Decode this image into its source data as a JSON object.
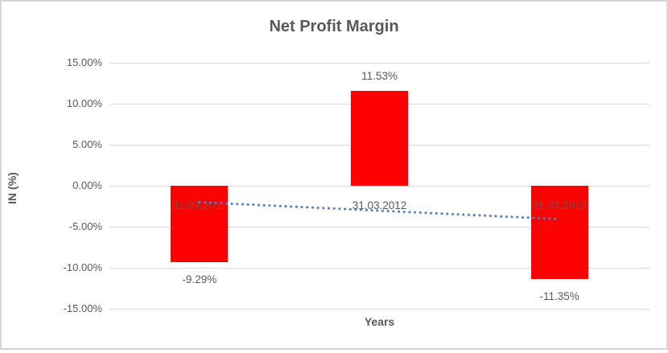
{
  "chart_data": {
    "type": "bar",
    "title": "Net Profit Margin",
    "xlabel": "Years",
    "ylabel": "IN (%)",
    "categories": [
      "31.03.2011",
      "31.03.2012",
      "31.03.2013"
    ],
    "values": [
      -9.29,
      11.53,
      -11.35
    ],
    "data_labels": [
      "-9.29%",
      "11.53%",
      "-11.35%"
    ],
    "ylim": [
      -15,
      15
    ],
    "ytick_step": 5,
    "ytick_labels": [
      "15.00%",
      "10.00%",
      "5.00%",
      "0.00%",
      "-5.00%",
      "-10.00%",
      "-15.00%"
    ],
    "grid": true,
    "legend": "none",
    "bar_color": "#ff0000",
    "gridline_color": "#d9d9d9",
    "text_color": "#595959",
    "trendline": {
      "type": "linear",
      "style": "dotted",
      "color": "#4f81bd",
      "values": [
        -2.01,
        -3.04,
        -4.07
      ]
    }
  }
}
